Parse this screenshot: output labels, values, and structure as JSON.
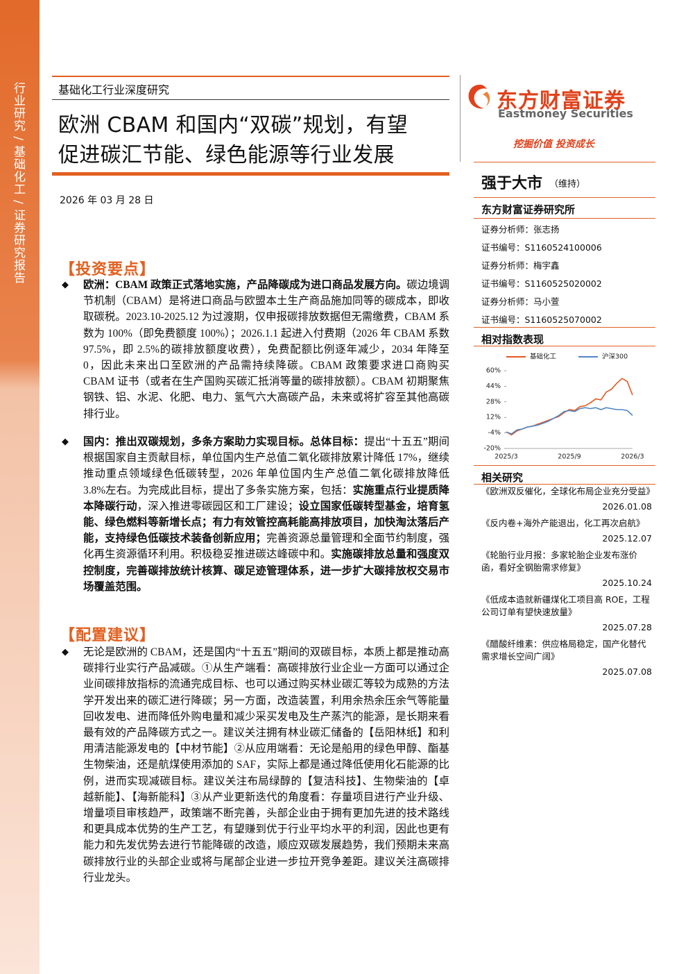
{
  "sidebar": {
    "label": "行业研究 / 基础化工 / 证券研究报告"
  },
  "header": {
    "category": "基础化工行业深度研究",
    "title_lines": [
      "欧洲 CBAM 和国内“双碳”规划，有望",
      "促进碳汇节能、绿色能源等行业发展"
    ],
    "date": "2026 年 03 月 28 日"
  },
  "brand": {
    "name_cn": "东方财富证券",
    "name_en": "Eastmoney Securities",
    "slogan": "挖掘价值 投资成长"
  },
  "rating": {
    "text": "强于大市",
    "status": "（维持）"
  },
  "institution": "东方财富证券研究所",
  "analysts": [
    "证券分析师：张志扬",
    "证书编号：S1160524100006",
    "证券分析师：梅宇鑫",
    "证书编号：S1160525020002",
    "证券分析师：马小萱",
    "证书编号：S1160525070002"
  ],
  "chart_title": "相对指数表现",
  "chart_data": {
    "type": "line",
    "categories": [
      "2025/3",
      null,
      null,
      null,
      null,
      null,
      null,
      null,
      null,
      null,
      null,
      null,
      "2025/9",
      null,
      null,
      null,
      null,
      null,
      null,
      null,
      null,
      null,
      null,
      null,
      "2026/3"
    ],
    "series": [
      {
        "name": "基础化工",
        "color": "#e5561f",
        "values": [
          -3,
          -6,
          -2,
          0,
          2,
          3,
          5,
          7,
          9,
          11,
          13,
          17,
          20,
          19,
          23,
          24,
          27,
          31,
          30,
          38,
          41,
          47,
          52,
          49,
          35
        ]
      },
      {
        "name": "沪深300",
        "color": "#4f86c6",
        "values": [
          -3,
          -5,
          -1,
          0,
          2,
          3,
          4,
          6,
          8,
          11,
          14,
          18,
          19,
          18,
          21,
          22,
          21,
          22,
          20,
          22,
          21,
          20,
          20,
          19,
          14
        ]
      }
    ],
    "ylim": [
      -20,
      60
    ],
    "yticks": [
      {
        "value": 60,
        "label": "60%"
      },
      {
        "value": 44,
        "label": "44%"
      },
      {
        "value": 28,
        "label": "28%"
      },
      {
        "value": 12,
        "label": "12%"
      },
      {
        "value": -4,
        "label": "-4%"
      },
      {
        "value": -20,
        "label": "-20%"
      }
    ],
    "legend": "top"
  },
  "related": {
    "title": "相关研究",
    "items": [
      {
        "title": "《欧洲双反催化，全球化布局企业充分受益》",
        "date": "2026.01.08"
      },
      {
        "title": "《反内卷+海外产能退出，化工再次启航》",
        "date": "2025.12.07"
      },
      {
        "title": "《轮胎行业月报：多家轮胎企业发布涨价函，看好全钢胎需求修复》",
        "date": "2025.10.24"
      },
      {
        "title": "《低成本造就新疆煤化工项目高 ROE，工程公司订单有望快速放量》",
        "date": "2025.07.28"
      },
      {
        "title": "《醋酸纤维素：供应格局稳定，国产化替代需求增长空间广阔》",
        "date": "2025.07.08"
      }
    ]
  },
  "sections": [
    {
      "heading": "【投资要点】",
      "bullets": [
        [
          {
            "text": "欧洲：CBAM 政策正式落地实施，产品降碳成为进口商品发展方向。",
            "bold": true
          },
          {
            "text": "碳边境调节机制（CBAM）是将进口商品与欧盟本土生产商品施加同等的碳成本，即收取碳税。2023.10-2025.12 为过渡期，仅申报碳排放数据但无需缴费，CBAM 系数为 100%（即免费额度 100%）；2026.1.1 起进入付费期（2026 年 CBAM 系数 97.5%，即 2.5%的碳排放额度收费），免费配额比例逐年减少，2034 年降至 0，因此未来出口至欧洲的产品需持续降碳。CBAM 政策要求进口商购买 CBAM 证书（或者在生产国购买碳汇抵消等量的碳排放额）。CBAM 初期聚焦钢铁、铝、水泥、化肥、电力、氢气六大高碳产品，未来或将扩容至其他高碳排行业。",
            "bold": false
          }
        ],
        [
          {
            "text": "国内：推出双碳规划，多条方案助力实现目标。总体目标：",
            "bold": true
          },
          {
            "text": "提出“十五五”期间根据国家自主贡献目标，单位国内生产总值二氧化碳排放累计降低 17%，继续推动重点领域绿色低碳转型，2026 年单位国内生产总值二氧化碳排放降低 3.8%左右。为完成此目标，提出了多条实施方案，包括：",
            "bold": false
          },
          {
            "text": "实施重点行业提质降本降碳行动",
            "bold": true
          },
          {
            "text": "，深入推进零碳园区和工厂建设；",
            "bold": false
          },
          {
            "text": "设立国家低碳转型基金，培育氢能、绿色燃料等新增长点；有力有效管控高耗能高排放项目，加快淘汰落后产能，支持绿色低碳技术装备创新应用；",
            "bold": true
          },
          {
            "text": "完善资源总量管理和全面节约制度，强化再生资源循环利用。积极稳妥推进碳达峰碳中和。",
            "bold": false
          },
          {
            "text": "实施碳排放总量和强度双控制度，完善碳排放统计核算、碳足迹管理体系，进一步扩大碳排放权交易市场覆盖范围。",
            "bold": true
          }
        ]
      ]
    },
    {
      "heading": "【配置建议】",
      "bullets": [
        [
          {
            "text": "无论是欧洲的 CBAM，还是国内“十五五”期间的双碳目标，本质上都是推动高碳排行业实行产品减碳。①从生产端看：高碳排放行业企业一方面可以通过企业间碳排放指标的流通完成目标、也可以通过购买林业碳汇等较为成熟的方法学开发出来的碳汇进行降碳；另一方面，改造装置，利用余热余压余气等能量回收发电、进而降低外购电量和减少采买发电及生产蒸汽的能源，是长期来看最有效的产品降碳方式之一。建议关注拥有林业碳汇储备的【岳阳林纸】和利用清洁能源发电的【中材节能】②从应用端看：无论是船用的绿色甲醇、酯基生物柴油，还是航煤使用添加的 SAF，实际上都是通过降低使用化石能源的比例，进而实现减碳目标。建议关注布局绿醇的【复洁科技】、生物柴油的【卓越新能】、【海新能科】③从产业更新迭代的角度看：存量项目进行产业升级、增量项目审核趋严，政策端不断完善，头部企业由于拥有更加先进的技术路线和更具成本优势的生产工艺，有望赚到优于行业平均水平的利润，因此也更有能力和先发优势去进行节能降碳的改造，顺应双碳发展趋势，我们预期未来高碳排放行业的头部企业或将与尾部企业进一步拉开竞争差距。建议关注高碳排行业龙头。",
            "bold": false
          }
        ]
      ]
    }
  ]
}
